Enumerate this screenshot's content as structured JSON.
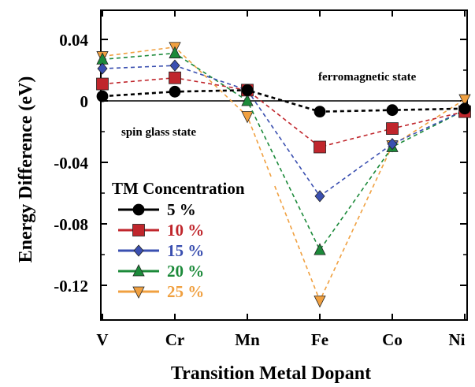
{
  "chart_data": {
    "type": "line",
    "xlabel": "Transition Metal Dopant",
    "ylabel": "Energy Difference (eV)",
    "categories": [
      "V",
      "Cr",
      "Mn",
      "Fe",
      "Co",
      "Ni"
    ],
    "ylim": [
      -0.14,
      0.06
    ],
    "yticks": [
      0.04,
      0,
      -0.04,
      -0.08,
      -0.12
    ],
    "ytick_labels": [
      "0.04",
      "0",
      "-0.04",
      "-0.08",
      "-0.12"
    ],
    "grid": false,
    "reference_line_y": 0,
    "annotations": [
      {
        "key": "ferro",
        "text": "ferromagnetic state"
      },
      {
        "key": "spin",
        "text": "spin glass state"
      }
    ],
    "legend": {
      "title": "TM Concentration",
      "placement": "lower-left"
    },
    "series": [
      {
        "name": "5 %",
        "color": "#000000",
        "marker": "circle",
        "values": [
          0.003,
          0.006,
          0.007,
          -0.007,
          -0.006,
          -0.005
        ]
      },
      {
        "name": "10 %",
        "color": "#c0262c",
        "marker": "square",
        "values": [
          0.011,
          0.015,
          0.007,
          -0.03,
          -0.018,
          -0.007
        ]
      },
      {
        "name": "15 %",
        "color": "#3a4fb0",
        "marker": "diamond",
        "values": [
          0.021,
          0.023,
          0.007,
          -0.062,
          -0.028,
          -0.006
        ]
      },
      {
        "name": "20 %",
        "color": "#1c8a3a",
        "marker": "triangle",
        "values": [
          0.027,
          0.031,
          0.0,
          -0.097,
          -0.03,
          -0.006
        ]
      },
      {
        "name": "25 %",
        "color": "#f0a040",
        "marker": "tri-down",
        "values": [
          0.029,
          0.035,
          -0.01,
          -0.13,
          -0.029,
          0.001
        ]
      }
    ]
  }
}
